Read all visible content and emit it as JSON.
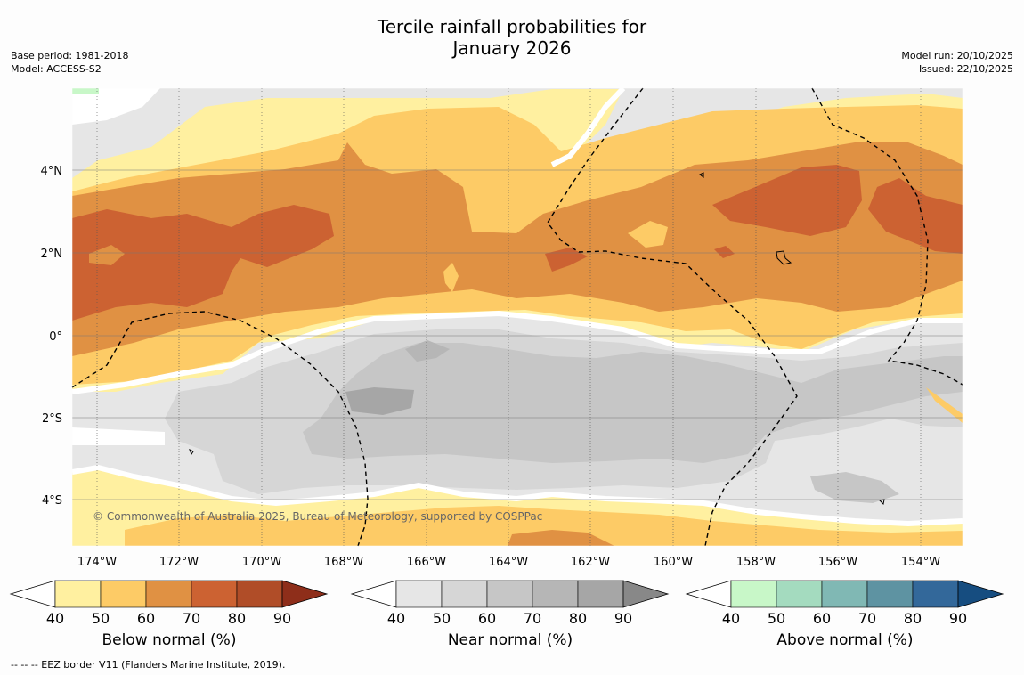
{
  "title": {
    "line1": "Tercile rainfall probabilities for",
    "line2": "January 2026"
  },
  "meta_left": {
    "base_period": "Base period: 1981-2018",
    "model": "Model: ACCESS-S2"
  },
  "meta_right": {
    "model_run": "Model run: 20/10/2025",
    "issued": "Issued: 22/10/2025"
  },
  "map": {
    "lon_labels": [
      "174°W",
      "172°W",
      "170°W",
      "168°W",
      "166°W",
      "164°W",
      "162°W",
      "160°W",
      "158°W",
      "156°W",
      "154°W"
    ],
    "lat_labels": [
      "4°N",
      "2°N",
      "0°",
      "2°S",
      "4°S"
    ],
    "copyright": "© Commonwealth of Australia 2025, Bureau of Meteorology, supported by COSPPac"
  },
  "legends": [
    {
      "name": "below",
      "title": "Below normal (%)",
      "ticks": [
        "40",
        "50",
        "60",
        "70",
        "80",
        "90"
      ],
      "colors": [
        "#fff0a0",
        "#fdcb66",
        "#e09143",
        "#cc6232",
        "#b04d28",
        "#8e2e1a"
      ]
    },
    {
      "name": "near",
      "title": "Near normal (%)",
      "ticks": [
        "40",
        "50",
        "60",
        "70",
        "80",
        "90"
      ],
      "colors": [
        "#e6e6e6",
        "#d6d6d6",
        "#c6c6c6",
        "#b6b6b6",
        "#a6a6a6",
        "#888888"
      ]
    },
    {
      "name": "above",
      "title": "Above normal (%)",
      "ticks": [
        "40",
        "50",
        "60",
        "70",
        "80",
        "90"
      ],
      "colors": [
        "#c8f7c8",
        "#a4dbbf",
        "#80b8b4",
        "#5e93a2",
        "#33689a",
        "#164d80"
      ]
    }
  ],
  "footer": "--  --  -- EEZ border V11 (Flanders Marine Institute, 2019)."
}
